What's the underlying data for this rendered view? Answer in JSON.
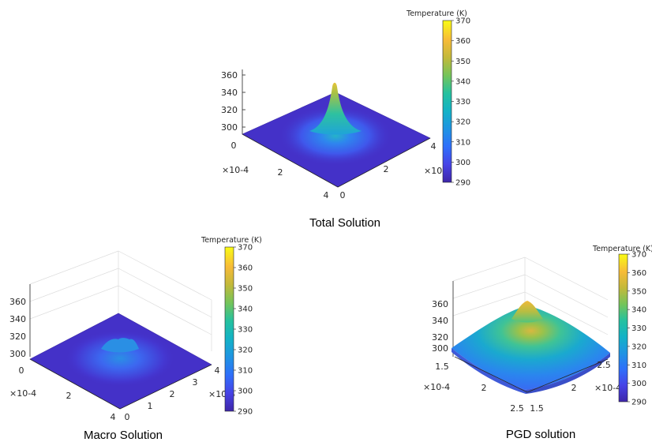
{
  "colors": {
    "colormap": [
      "#3e26a8",
      "#4743e6",
      "#2f6ffa",
      "#1f94e3",
      "#13b2c6",
      "#25c19f",
      "#74c45a",
      "#c2b93a",
      "#f7bb38",
      "#f9fb14"
    ],
    "axis": "#262626",
    "grid": "#dcdcdc",
    "background": "#ffffff"
  },
  "chart_data": [
    {
      "type": "surface",
      "caption": "Total Solution",
      "colorbar_title": "Temperature (K)",
      "clim": [
        290,
        370
      ],
      "colorbar_ticks": [
        "370",
        "360",
        "350",
        "340",
        "330",
        "320",
        "310",
        "300",
        "290"
      ],
      "zlim": [
        290,
        365
      ],
      "z_ticks": [
        "360",
        "340",
        "320",
        "300"
      ],
      "x_ticks": [
        "0",
        "2",
        "4"
      ],
      "y_ticks": [
        "4",
        "2",
        "0"
      ],
      "x_exponent": "×10-4",
      "y_exponent": "×10-4",
      "surface": {
        "base": 294,
        "peak": 355,
        "shape": "sharp central peak",
        "x_range": [
          0,
          4
        ],
        "y_range": [
          0,
          4
        ]
      }
    },
    {
      "type": "surface",
      "caption": "Macro Solution",
      "colorbar_title": "Temperature (K)",
      "clim": [
        290,
        370
      ],
      "colorbar_ticks": [
        "370",
        "360",
        "350",
        "340",
        "330",
        "320",
        "310",
        "300",
        "290"
      ],
      "zlim": [
        290,
        380
      ],
      "z_ticks": [
        "360",
        "340",
        "320",
        "300"
      ],
      "x_ticks": [
        "0",
        "2",
        "4"
      ],
      "y_ticks": [
        "4",
        "3",
        "2",
        "1",
        "0"
      ],
      "x_exponent": "×10-4",
      "y_exponent": "×10-4",
      "surface": {
        "base": 294,
        "peak": 318,
        "shape": "low flat bump",
        "x_range": [
          0,
          4
        ],
        "y_range": [
          0,
          4
        ]
      }
    },
    {
      "type": "surface",
      "caption": "PGD solution",
      "colorbar_title": "Temperature (K)",
      "clim": [
        290,
        370
      ],
      "colorbar_ticks": [
        "370",
        "360",
        "350",
        "340",
        "330",
        "320",
        "310",
        "300",
        "290"
      ],
      "zlim": [
        295,
        375
      ],
      "z_ticks": [
        "360",
        "340",
        "320",
        "300"
      ],
      "x_ticks": [
        "1.5",
        "2",
        "2.5"
      ],
      "y_ticks": [
        "2.5",
        "2",
        "1.5"
      ],
      "x_exponent": "×10-4",
      "y_exponent": "×10-4",
      "surface": {
        "base": 300,
        "peak": 352,
        "shape": "broad dome",
        "x_range": [
          1.5,
          2.5
        ],
        "y_range": [
          1.5,
          2.5
        ]
      }
    }
  ]
}
